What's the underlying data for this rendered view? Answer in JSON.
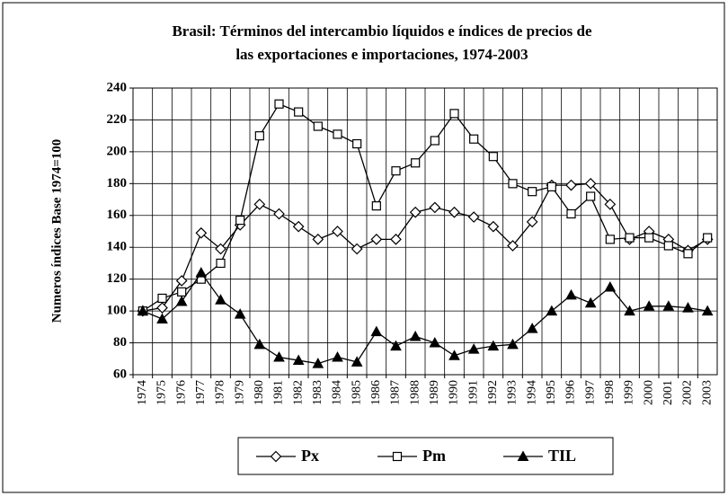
{
  "chart_data": {
    "type": "line",
    "title": [
      "Brasil: Términos del intercambio líquidos e índices de precios de",
      "las exportaciones e importaciones, 1974-2003"
    ],
    "y_label": "Numeros índices Base 1974=100",
    "categories": [
      "1974",
      "1975",
      "1976",
      "1977",
      "1978",
      "1979",
      "1980",
      "1981",
      "1982",
      "1983",
      "1984",
      "1985",
      "1986",
      "1987",
      "1988",
      "1989",
      "1990",
      "1991",
      "1992",
      "1993",
      "1994",
      "1995",
      "1996",
      "1997",
      "1998",
      "1999",
      "2000",
      "2001",
      "2002",
      "2003"
    ],
    "series": [
      {
        "name": "Px",
        "color": "#000000",
        "marker": "diamond",
        "values": [
          100,
          102,
          119,
          149,
          139,
          154,
          167,
          161,
          153,
          145,
          150,
          139,
          145,
          145,
          162,
          165,
          162,
          159,
          153,
          141,
          156,
          179,
          179,
          180,
          167,
          145,
          150,
          145,
          138,
          145
        ]
      },
      {
        "name": "Pm",
        "color": "#000000",
        "marker": "square",
        "values": [
          100,
          108,
          112,
          120,
          130,
          157,
          210,
          230,
          225,
          216,
          211,
          205,
          166,
          188,
          193,
          207,
          224,
          208,
          197,
          180,
          175,
          178,
          161,
          172,
          145,
          146,
          146,
          141,
          136,
          146
        ]
      },
      {
        "name": "TIL",
        "color": "#000000",
        "marker": "triangle",
        "values": [
          100,
          95,
          106,
          124,
          107,
          98,
          79,
          71,
          69,
          67,
          71,
          68,
          87,
          78,
          84,
          80,
          72,
          76,
          78,
          79,
          89,
          100,
          110,
          105,
          115,
          100,
          103,
          103,
          102,
          100
        ]
      }
    ],
    "ylim": [
      60,
      240
    ],
    "yticks": [
      60,
      80,
      100,
      120,
      140,
      160,
      180,
      200,
      220,
      240
    ],
    "grid": true,
    "legend": "bottom"
  }
}
